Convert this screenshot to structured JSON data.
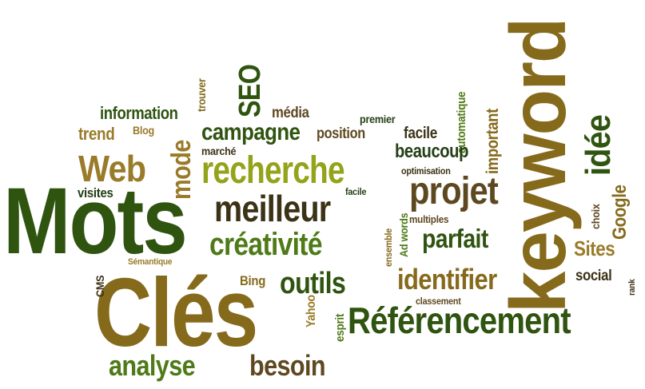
{
  "words": {
    "mots": "Mots",
    "cles": "Clés",
    "keyword": "keyword",
    "referencement": "Référencement",
    "recherche": "recherche",
    "meilleur": "meilleur",
    "projet": "projet",
    "creativite": "créativité",
    "web": "Web",
    "analyse": "analyse",
    "besoin": "besoin",
    "outils": "outils",
    "identifier": "identifier",
    "parfait": "parfait",
    "campagne": "campagne",
    "idee": "idée",
    "seo": "SEO",
    "mode": "mode",
    "google": "Google",
    "sites": "Sites",
    "social": "social",
    "information": "information",
    "trend": "trend",
    "beaucoup": "beaucoup",
    "important": "important",
    "facile_top": "facile",
    "facile_small": "facile",
    "position": "position",
    "media": "média",
    "premier": "premier",
    "automatique": "automatique",
    "blog": "Blog",
    "marche": "marché",
    "trouver": "trouver",
    "optimisation": "optimisation",
    "visites": "visites",
    "choix": "choix",
    "multiples": "multiples",
    "ad_words": "Ad words",
    "ensemble": "ensemble",
    "semantique": "Sémantique",
    "cms": "CMS",
    "bing": "Bing",
    "yahoo": "Yahoo",
    "esprit": "esprit",
    "classement": "classement",
    "rank": "rank"
  },
  "colors": {
    "dark_green": "#2f5410",
    "medium_green": "#4e7a17",
    "yellow_green": "#93a31a",
    "olive": "#866a1c",
    "brown": "#5e4820",
    "dark_brown": "#3c3216",
    "deep_green": "#243f16",
    "khaki": "#9a7b2a"
  }
}
